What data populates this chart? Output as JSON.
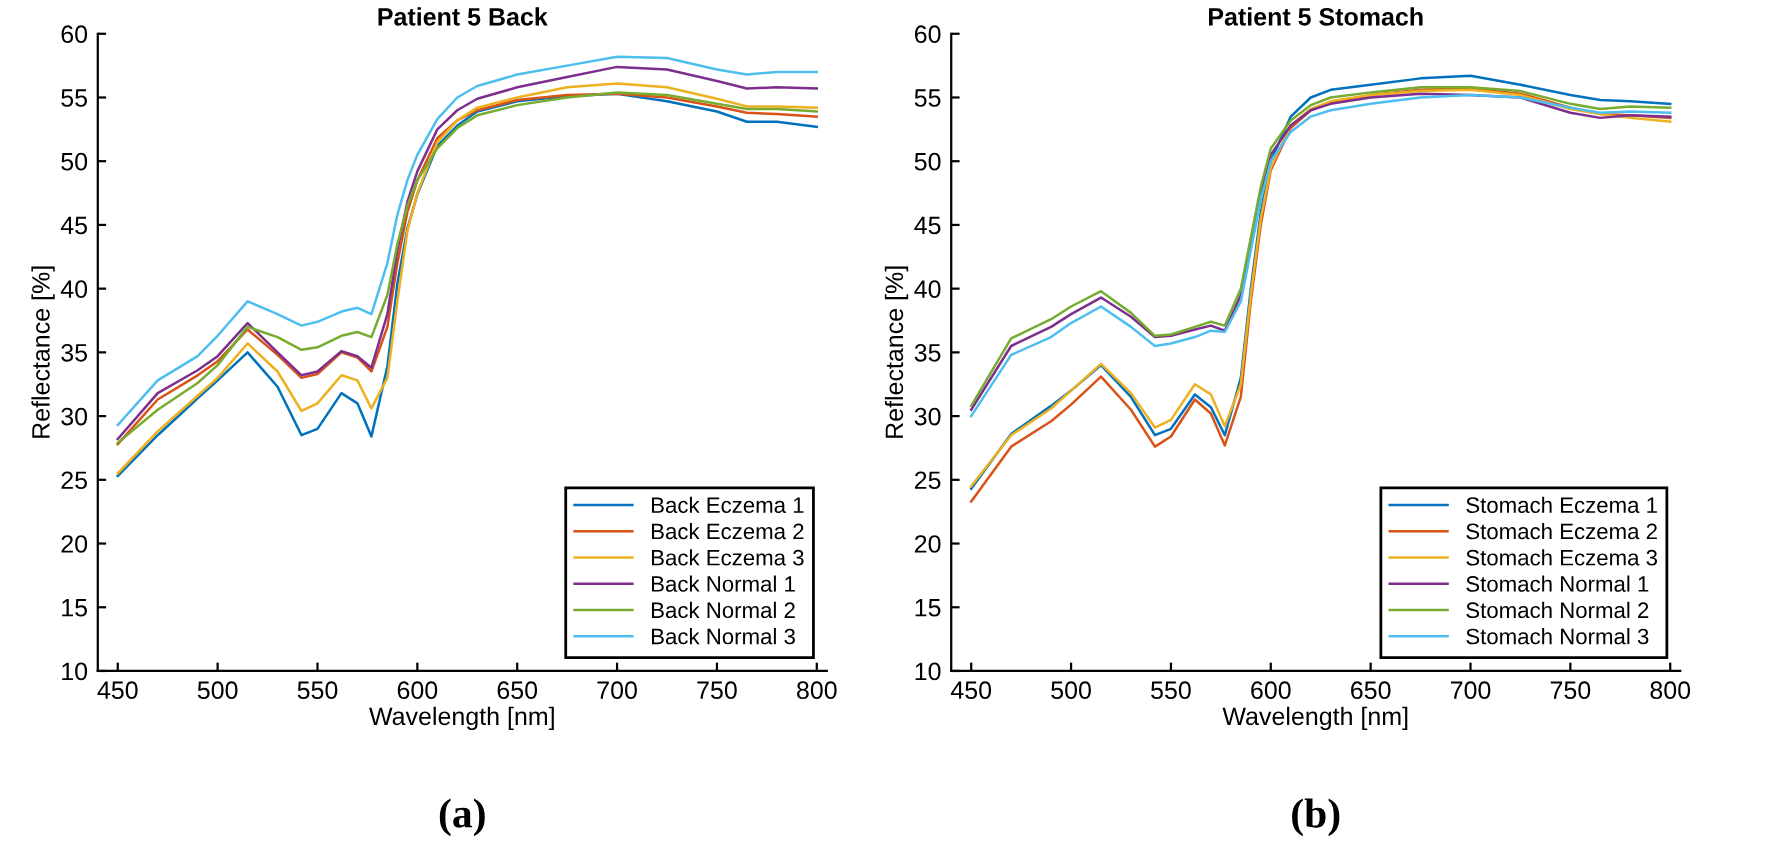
{
  "chart_data": [
    {
      "type": "line",
      "title": "Patient 5 Back",
      "xlabel": "Wavelength [nm]",
      "ylabel": "Reflectance [%]",
      "annotations": [
        "(a)"
      ],
      "x": [
        450,
        470,
        490,
        500,
        515,
        530,
        542,
        550,
        562,
        570,
        577,
        585,
        590,
        595,
        600,
        610,
        620,
        630,
        650,
        675,
        700,
        725,
        750,
        765,
        780,
        800
      ],
      "xlim": [
        440,
        805
      ],
      "xticks": [
        450,
        500,
        550,
        600,
        650,
        700,
        750,
        800
      ],
      "ylim": [
        10,
        60
      ],
      "yticks": [
        10,
        15,
        20,
        25,
        30,
        35,
        40,
        45,
        50,
        55,
        60
      ],
      "legend": "bottom right",
      "grid": false,
      "marker": "none",
      "line_style": "solid",
      "series": [
        {
          "name": "Back Eczema 1",
          "color": "#0072bd",
          "values": [
            25.3,
            28.5,
            31.4,
            32.8,
            35.0,
            32.3,
            28.5,
            29,
            31.8,
            31,
            28.4,
            33.9,
            40.4,
            44.7,
            47.4,
            51.2,
            52.8,
            53.9,
            54.7,
            55.1,
            55.3,
            54.7,
            53.9,
            53.1,
            53.1,
            52.7
          ]
        },
        {
          "name": "Back Eczema 2",
          "color": "#d95319",
          "values": [
            27.8,
            31.3,
            33.2,
            34.3,
            36.8,
            34.8,
            33.0,
            33.3,
            35.0,
            34.6,
            33.5,
            37,
            42,
            46,
            48.5,
            51.8,
            53.2,
            54,
            54.8,
            55.2,
            55.3,
            55.0,
            54.3,
            53.8,
            53.7,
            53.5
          ]
        },
        {
          "name": "Back Eczema 3",
          "color": "#edb120",
          "values": [
            25.5,
            28.8,
            31.6,
            33,
            35.7,
            33.5,
            30.4,
            31,
            33.2,
            32.8,
            30.6,
            33,
            39,
            44.5,
            47.5,
            51.5,
            53.2,
            54.2,
            55.0,
            55.8,
            56.1,
            55.8,
            54.9,
            54.3,
            54.3,
            54.2
          ]
        },
        {
          "name": "Back Normal 1",
          "color": "#7e2f8e",
          "values": [
            28.2,
            31.8,
            33.6,
            34.7,
            37.3,
            35,
            33.2,
            33.5,
            35.1,
            34.7,
            33.8,
            38,
            43,
            46.8,
            49.2,
            52.5,
            54.0,
            54.9,
            55.8,
            56.6,
            57.4,
            57.2,
            56.3,
            55.7,
            55.8,
            55.7
          ]
        },
        {
          "name": "Back Normal 2",
          "color": "#77ac30",
          "values": [
            27.9,
            30.5,
            32.6,
            34,
            37.0,
            36.2,
            35.2,
            35.4,
            36.3,
            36.6,
            36.2,
            39.5,
            43.5,
            46.5,
            48.5,
            51.0,
            52.6,
            53.6,
            54.4,
            55.0,
            55.4,
            55.2,
            54.5,
            54.1,
            54.1,
            53.9
          ]
        },
        {
          "name": "Back Normal 3",
          "color": "#4dbeee",
          "values": [
            29.3,
            32.8,
            34.7,
            36.3,
            39.0,
            38.0,
            37.1,
            37.4,
            38.2,
            38.5,
            38.0,
            42,
            45.8,
            48.5,
            50.5,
            53.3,
            55.0,
            55.9,
            56.8,
            57.5,
            58.2,
            58.1,
            57.2,
            56.8,
            57.0,
            57.0
          ]
        }
      ]
    },
    {
      "type": "line",
      "title": "Patient 5 Stomach",
      "xlabel": "Wavelength [nm]",
      "ylabel": "Reflectance [%]",
      "annotations": [
        "(b)"
      ],
      "x": [
        450,
        470,
        490,
        500,
        515,
        530,
        542,
        550,
        562,
        570,
        577,
        585,
        590,
        595,
        600,
        610,
        620,
        630,
        650,
        675,
        700,
        725,
        750,
        765,
        780,
        800
      ],
      "xlim": [
        440,
        805
      ],
      "xticks": [
        450,
        500,
        550,
        600,
        650,
        700,
        750,
        800
      ],
      "ylim": [
        10,
        60
      ],
      "yticks": [
        10,
        15,
        20,
        25,
        30,
        35,
        40,
        45,
        50,
        55,
        60
      ],
      "legend": "bottom right",
      "grid": false,
      "marker": "none",
      "line_style": "solid",
      "series": [
        {
          "name": "Stomach Eczema 1",
          "color": "#0072bd",
          "values": [
            24.3,
            28.6,
            30.8,
            32.0,
            34.0,
            31.5,
            28.5,
            29,
            31.7,
            30.7,
            28.5,
            33,
            40,
            46,
            50.0,
            53.5,
            55.0,
            55.6,
            56.0,
            56.5,
            56.7,
            56.0,
            55.2,
            54.8,
            54.7,
            54.5
          ]
        },
        {
          "name": "Stomach Eczema 2",
          "color": "#d95319",
          "values": [
            23.3,
            27.6,
            29.6,
            30.9,
            33.1,
            30.5,
            27.6,
            28.4,
            31.3,
            30.2,
            27.7,
            31.5,
            39,
            45,
            49.3,
            52.6,
            54.0,
            54.6,
            55.2,
            55.6,
            55.7,
            55.3,
            54.2,
            53.7,
            53.6,
            53.4
          ]
        },
        {
          "name": "Stomach Eczema 3",
          "color": "#edb120",
          "values": [
            24.5,
            28.5,
            30.6,
            32,
            34.1,
            31.8,
            29.1,
            29.7,
            32.5,
            31.7,
            29.2,
            32.5,
            39.5,
            45.5,
            49.5,
            52.8,
            54.1,
            54.7,
            55.2,
            55.5,
            55.6,
            55.2,
            54.1,
            53.7,
            53.4,
            53.1
          ]
        },
        {
          "name": "Stomach Normal 1",
          "color": "#7e2f8e",
          "values": [
            30.5,
            35.5,
            37.0,
            38.0,
            39.3,
            37.8,
            36.2,
            36.3,
            36.8,
            37.1,
            36.7,
            39.5,
            43.5,
            47.5,
            50.5,
            52.8,
            54.0,
            54.5,
            55.0,
            55.3,
            55.2,
            55.0,
            53.8,
            53.4,
            53.6,
            53.5
          ]
        },
        {
          "name": "Stomach Normal 2",
          "color": "#77ac30",
          "values": [
            30.8,
            36.1,
            37.6,
            38.6,
            39.8,
            38.1,
            36.3,
            36.4,
            37.0,
            37.4,
            37.1,
            40,
            44,
            48,
            51,
            53.2,
            54.4,
            55.0,
            55.4,
            55.8,
            55.8,
            55.5,
            54.5,
            54.1,
            54.3,
            54.2
          ]
        },
        {
          "name": "Stomach Normal 3",
          "color": "#4dbeee",
          "values": [
            30.0,
            34.8,
            36.2,
            37.3,
            38.6,
            37.0,
            35.5,
            35.7,
            36.2,
            36.7,
            36.6,
            39,
            43,
            47,
            50,
            52.3,
            53.5,
            54.0,
            54.5,
            55.0,
            55.2,
            55.0,
            54.2,
            53.8,
            53.9,
            53.8
          ]
        }
      ]
    }
  ]
}
